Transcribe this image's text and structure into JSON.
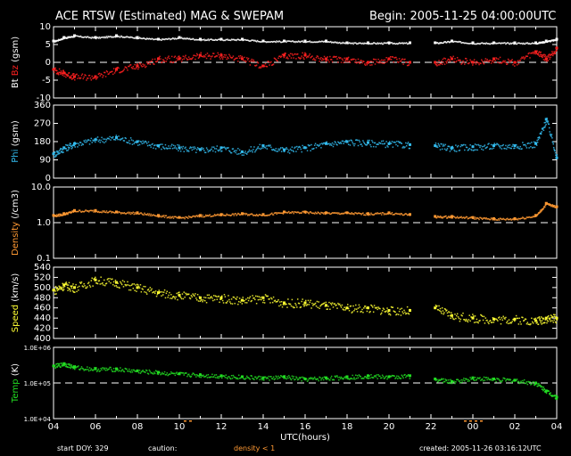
{
  "header": {
    "title": "ACE RTSW (Estimated) MAG & SWEPAM",
    "begin": "Begin: 2005-11-25 04:00:00UTC"
  },
  "footer": {
    "start_doy": "start DOY: 329",
    "caution": "caution:",
    "caution_note": "density < 1",
    "created": "created: 2005-11-26 03:16:12UTC"
  },
  "colors": {
    "bt": "#ffffff",
    "bz": "#ff2020",
    "phi": "#33bbee",
    "density": "#ff9933",
    "speed": "#ffff33",
    "temp": "#22dd22",
    "axis": "#ffffff",
    "caution": "#ff9933"
  },
  "chart_data": [
    {
      "type": "scatter",
      "panel": "mag",
      "ylabel_parts": [
        "Bt",
        "Bz",
        "(gsm)"
      ],
      "ylim": [
        -10,
        10
      ],
      "yticks": [
        "10",
        "5",
        "0",
        "-5",
        "-10"
      ],
      "reference_line": 0,
      "x_gaps": [
        [
          21,
          22
        ]
      ],
      "series": [
        {
          "name": "Bt",
          "x": [
            4,
            4.5,
            5,
            6,
            7,
            8,
            9,
            10,
            11,
            12,
            13,
            14,
            15,
            16,
            17,
            18,
            19,
            20,
            21,
            22.2,
            23,
            24,
            25,
            26,
            27,
            27.5,
            28
          ],
          "y": [
            6,
            7,
            7.5,
            7,
            7.5,
            7,
            6.5,
            7,
            6.5,
            6.5,
            6.5,
            6,
            6,
            6,
            6,
            5.5,
            5.5,
            5.5,
            5.5,
            5.5,
            6,
            5.5,
            5.5,
            5.5,
            5.5,
            6,
            6.5
          ]
        },
        {
          "name": "Bz",
          "x": [
            4,
            4.5,
            5,
            6,
            7,
            8,
            9,
            10,
            11,
            12,
            13,
            14,
            15,
            16,
            17,
            18,
            19,
            20,
            21,
            22.2,
            23,
            24,
            25,
            26,
            27,
            27.5,
            28
          ],
          "y": [
            -2,
            -3,
            -4,
            -4,
            -2,
            -1,
            1,
            1,
            2,
            2,
            1,
            -1,
            2,
            2,
            1,
            1,
            0,
            1,
            0,
            0,
            1,
            0,
            1,
            0,
            3,
            1,
            4
          ]
        }
      ]
    },
    {
      "type": "scatter",
      "panel": "phi",
      "ylabel": "Phi (gsm)",
      "ylim": [
        0,
        360
      ],
      "yticks": [
        "360",
        "270",
        "180",
        "90",
        "0"
      ],
      "x_gaps": [
        [
          21,
          22
        ]
      ],
      "series": [
        {
          "name": "Phi",
          "x": [
            4,
            4.5,
            5,
            6,
            7,
            8,
            9,
            10,
            11,
            12,
            13,
            14,
            15,
            16,
            17,
            18,
            19,
            20,
            21,
            22.2,
            23,
            24,
            25,
            26,
            27,
            27.5,
            28
          ],
          "y": [
            120,
            150,
            170,
            190,
            200,
            180,
            160,
            150,
            140,
            150,
            130,
            160,
            140,
            150,
            170,
            180,
            175,
            170,
            165,
            160,
            150,
            155,
            160,
            160,
            170,
            290,
            100
          ]
        }
      ]
    },
    {
      "type": "scatter",
      "panel": "density",
      "ylabel": "Density (/cm3)",
      "yscale": "log",
      "ylim": [
        0.1,
        10
      ],
      "yticks": [
        "10.0",
        "1.0",
        "0.1"
      ],
      "reference_line": 1,
      "x_gaps": [
        [
          21,
          22
        ]
      ],
      "series": [
        {
          "name": "Density",
          "x": [
            4,
            4.5,
            5,
            6,
            7,
            8,
            9,
            10,
            11,
            12,
            13,
            14,
            15,
            16,
            17,
            18,
            19,
            20,
            21,
            22.2,
            23,
            24,
            25,
            26,
            27,
            27.5,
            28
          ],
          "y": [
            1.6,
            1.8,
            2.2,
            2.2,
            2,
            1.9,
            1.6,
            1.4,
            1.6,
            1.7,
            1.8,
            1.7,
            2,
            2,
            1.9,
            1.9,
            1.8,
            1.9,
            1.7,
            1.5,
            1.5,
            1.4,
            1.3,
            1.3,
            1.6,
            3.5,
            2.8
          ]
        }
      ]
    },
    {
      "type": "scatter",
      "panel": "speed",
      "ylabel": "Speed (km/s)",
      "ylim": [
        400,
        540
      ],
      "yticks": [
        "540",
        "520",
        "500",
        "480",
        "460",
        "440",
        "420",
        "400"
      ],
      "x_gaps": [
        [
          21,
          22
        ]
      ],
      "series": [
        {
          "name": "Speed",
          "x": [
            4,
            4.5,
            5,
            6,
            7,
            8,
            9,
            10,
            11,
            12,
            13,
            14,
            15,
            16,
            17,
            18,
            19,
            20,
            21,
            22.2,
            23,
            24,
            25,
            26,
            27,
            27.5,
            28
          ],
          "y": [
            495,
            505,
            500,
            515,
            510,
            500,
            490,
            485,
            480,
            480,
            475,
            480,
            470,
            470,
            465,
            460,
            460,
            455,
            455,
            460,
            445,
            440,
            438,
            438,
            435,
            440,
            440
          ]
        }
      ]
    },
    {
      "type": "scatter",
      "panel": "temp",
      "ylabel": "Temp (K)",
      "yscale": "log",
      "ylim": [
        10000,
        1000000
      ],
      "yticks": [
        "1.0E+06",
        "1.0E+05",
        "1.0E+04"
      ],
      "reference_line": 100000,
      "x_gaps": [
        [
          21,
          22
        ]
      ],
      "series": [
        {
          "name": "Temp",
          "x": [
            4,
            4.5,
            5,
            6,
            7,
            8,
            9,
            10,
            11,
            12,
            13,
            14,
            15,
            16,
            17,
            18,
            19,
            20,
            21,
            22.2,
            23,
            24,
            25,
            26,
            27,
            27.5,
            28
          ],
          "y": [
            300000,
            350000,
            280000,
            250000,
            250000,
            220000,
            200000,
            180000,
            170000,
            160000,
            150000,
            140000,
            150000,
            130000,
            140000,
            150000,
            160000,
            150000,
            160000,
            130000,
            110000,
            140000,
            130000,
            120000,
            100000,
            60000,
            40000
          ]
        }
      ]
    }
  ],
  "xaxis": {
    "label": "UTC(hours)",
    "ticks": [
      "04",
      "06",
      "08",
      "10",
      "12",
      "14",
      "16",
      "18",
      "20",
      "22",
      "00",
      "02",
      "04"
    ],
    "range": [
      4,
      28
    ]
  }
}
